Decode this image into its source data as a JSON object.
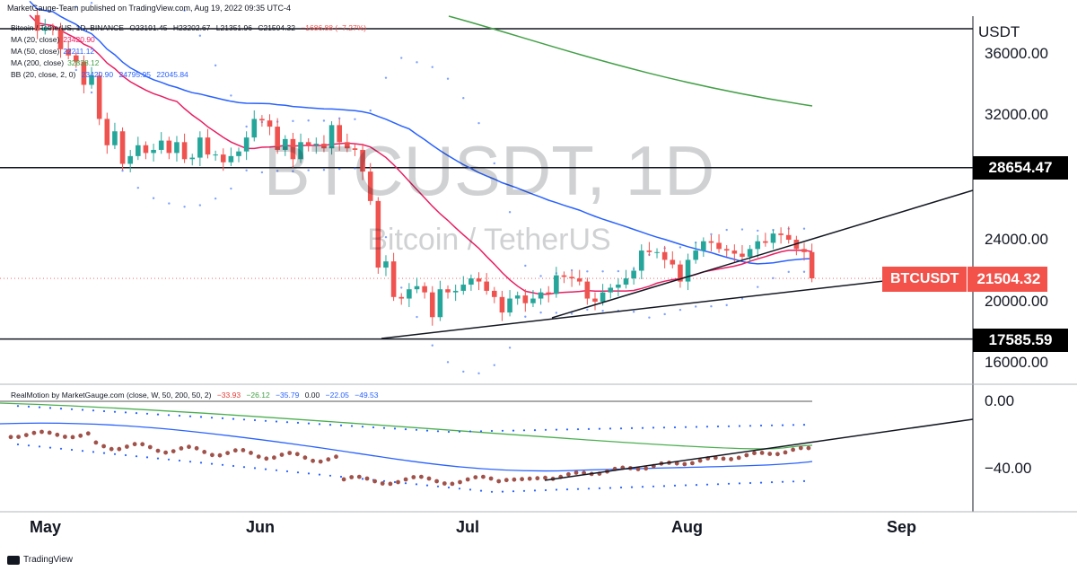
{
  "header": {
    "publisher": "MarketGauge-Team published on TradingView.com, Aug 19, 2022 09:35 UTC-4"
  },
  "legend": {
    "symbol_line": [
      "Bitcoin / TetherUS, 1D, BINANCE",
      "O23191.45",
      "H23202.67",
      "L21351.96",
      "C21504.32",
      "−1686.88 (−7.27%)"
    ],
    "ma20_label": "MA (20, close)",
    "ma20_value": "23420.90",
    "ma50_label": "MA (50, close)",
    "ma50_value": "22211.12",
    "ma200_label": "MA (200, close)",
    "ma200_value": "32838.12",
    "bb_label": "BB (20, close, 2, 0)",
    "bb_values": [
      "23420.90",
      "24795.95",
      "22045.84"
    ]
  },
  "oscillator_legend": {
    "label": "RealMotion by MarketGauge.com (close, W, 50, 200, 50, 2)",
    "values": [
      "−33.93",
      "−26.12",
      "−35.79",
      "0.00",
      "−22.05",
      "−49.53"
    ]
  },
  "watermark": {
    "symbol": "BTCUSDT, 1D",
    "name": "Bitcoin / TetherUS"
  },
  "price_axis": {
    "currency": "USDT",
    "ticks": [
      "36000.00",
      "32000.00",
      "24000.00",
      "20000.00",
      "16000.00"
    ]
  },
  "lower_axis": {
    "ticks": [
      "0.00",
      "−40.00"
    ]
  },
  "levels": {
    "upper": "28654.47",
    "lower": "17585.59"
  },
  "last_price": {
    "symbol": "BTCUSDT",
    "value": "21504.32"
  },
  "months": [
    "May",
    "Jun",
    "Jul",
    "Aug",
    "Sep"
  ],
  "footer": {
    "brand": "TradingView"
  },
  "colors": {
    "up": "#26a69a",
    "down": "#ef5350",
    "ma20": "#e91e63",
    "ma50": "#2962ff",
    "ma200": "#43a047",
    "bb": "#2962ff",
    "dots": "#a0524a",
    "tag": "#f2524a",
    "osc_green": "#4caf50"
  },
  "chart_data": {
    "type": "candlestick",
    "price_axis_range": [
      14500,
      38500
    ],
    "horizontal_levels": [
      28654.47,
      17585.59
    ],
    "close_prices": [
      38500,
      37500,
      37700,
      37600,
      36300,
      35900,
      35500,
      34000,
      34600,
      31800,
      30100,
      31000,
      28900,
      29400,
      30100,
      29600,
      29800,
      30400,
      29600,
      30300,
      29200,
      29300,
      30600,
      29500,
      29500,
      29000,
      29400,
      29700,
      30600,
      31800,
      31700,
      31300,
      29800,
      30500,
      29200,
      30300,
      30100,
      30200,
      29900,
      31400,
      30300,
      29900,
      29800,
      28400,
      26500,
      22200,
      22600,
      20300,
      20200,
      20800,
      21000,
      20600,
      19000,
      20800,
      20600,
      20700,
      21100,
      21500,
      21300,
      20700,
      20300,
      19300,
      20200,
      20400,
      19900,
      20200,
      20600,
      20500,
      21700,
      21600,
      21500,
      21300,
      20200,
      20000,
      20600,
      20900,
      21100,
      21500,
      22000,
      23300,
      23200,
      23200,
      22700,
      22400,
      21300,
      22700,
      23300,
      23900,
      23800,
      23400,
      23300,
      23100,
      22900,
      23400,
      23900,
      23800,
      24400,
      24300,
      24000,
      23400,
      23200,
      21504
    ]
  }
}
